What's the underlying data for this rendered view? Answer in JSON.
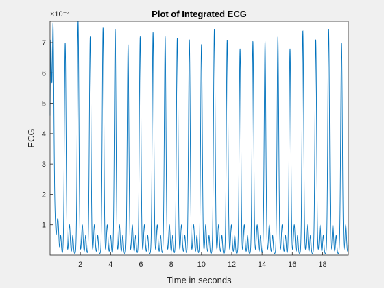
{
  "chart_data": {
    "type": "line",
    "title": "Plot of Integrated ECG",
    "xlabel": "Time in seconds",
    "ylabel": "ECG",
    "y_scale_exponent": "×10⁻⁴",
    "xlim": [
      0,
      19.7
    ],
    "ylim": [
      0,
      7.7
    ],
    "x_ticks": [
      2,
      4,
      6,
      8,
      10,
      12,
      14,
      16,
      18
    ],
    "y_ticks": [
      1,
      2,
      3,
      4,
      5,
      6,
      7
    ],
    "grid": false,
    "series": [
      {
        "color": "#0072bd",
        "r_peaks": [
          {
            "t": 0.05,
            "v": 6.9
          },
          {
            "t": 0.2,
            "v": 7.45
          },
          {
            "t": 1.0,
            "v": 7.0
          },
          {
            "t": 1.85,
            "v": 7.75
          },
          {
            "t": 2.65,
            "v": 7.2
          },
          {
            "t": 3.5,
            "v": 7.5
          },
          {
            "t": 4.3,
            "v": 7.45
          },
          {
            "t": 5.15,
            "v": 6.95
          },
          {
            "t": 5.95,
            "v": 7.2
          },
          {
            "t": 6.8,
            "v": 7.35
          },
          {
            "t": 7.6,
            "v": 7.2
          },
          {
            "t": 8.4,
            "v": 7.15
          },
          {
            "t": 9.2,
            "v": 7.1
          },
          {
            "t": 10.0,
            "v": 6.95
          },
          {
            "t": 10.85,
            "v": 7.45
          },
          {
            "t": 11.7,
            "v": 7.1
          },
          {
            "t": 12.55,
            "v": 6.8
          },
          {
            "t": 13.4,
            "v": 7.05
          },
          {
            "t": 14.2,
            "v": 7.05
          },
          {
            "t": 15.05,
            "v": 7.2
          },
          {
            "t": 15.85,
            "v": 6.8
          },
          {
            "t": 16.7,
            "v": 7.4
          },
          {
            "t": 17.55,
            "v": 7.1
          },
          {
            "t": 18.4,
            "v": 7.45
          },
          {
            "t": 19.25,
            "v": 7.0
          }
        ],
        "t_wave_amplitude": 1.0,
        "minimum": 0.05
      }
    ]
  }
}
